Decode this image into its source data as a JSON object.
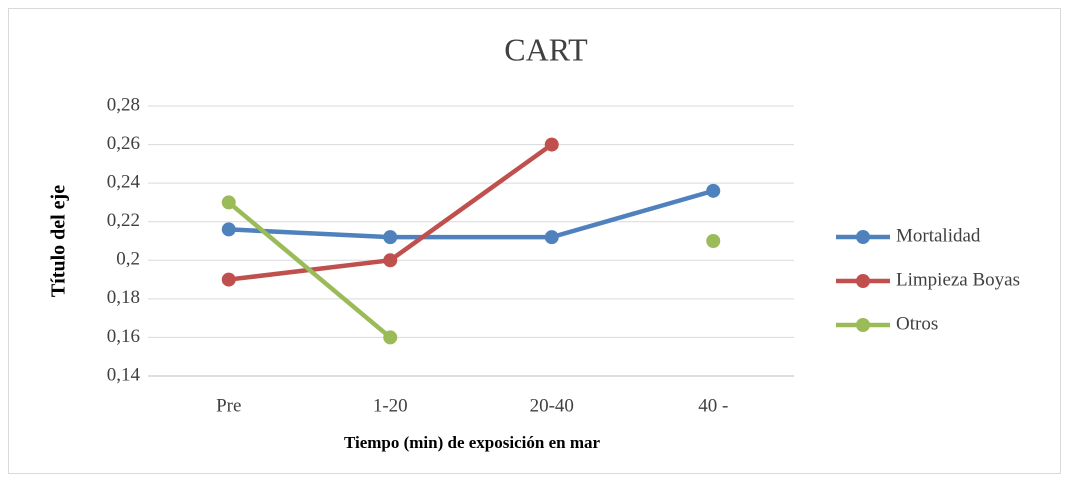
{
  "chart_data": {
    "type": "line",
    "title": "CART",
    "x_label": "Tiempo (min) de exposición en mar",
    "y_label": "Título del eje",
    "categories": [
      "Pre",
      "1-20",
      "20-40",
      "40 -"
    ],
    "series": [
      {
        "name": "Mortalidad",
        "color": "#4f81bd",
        "values": [
          0.216,
          0.212,
          0.212,
          0.236
        ]
      },
      {
        "name": "Limpieza Boyas",
        "color": "#c0504d",
        "values": [
          0.19,
          0.2,
          0.26,
          null
        ]
      },
      {
        "name": "Otros",
        "color": "#9bbb59",
        "values": [
          0.23,
          0.16,
          null,
          0.21
        ]
      }
    ],
    "ylim": [
      0.14,
      0.28
    ],
    "yticks": [
      {
        "value": 0.14,
        "label": "0,14"
      },
      {
        "value": 0.16,
        "label": "0,16"
      },
      {
        "value": 0.18,
        "label": "0,18"
      },
      {
        "value": 0.2,
        "label": "0,2"
      },
      {
        "value": 0.22,
        "label": "0,22"
      },
      {
        "value": 0.24,
        "label": "0,24"
      },
      {
        "value": 0.26,
        "label": "0,26"
      },
      {
        "value": 0.28,
        "label": "0,28"
      }
    ],
    "grid": true,
    "legend": "right"
  }
}
